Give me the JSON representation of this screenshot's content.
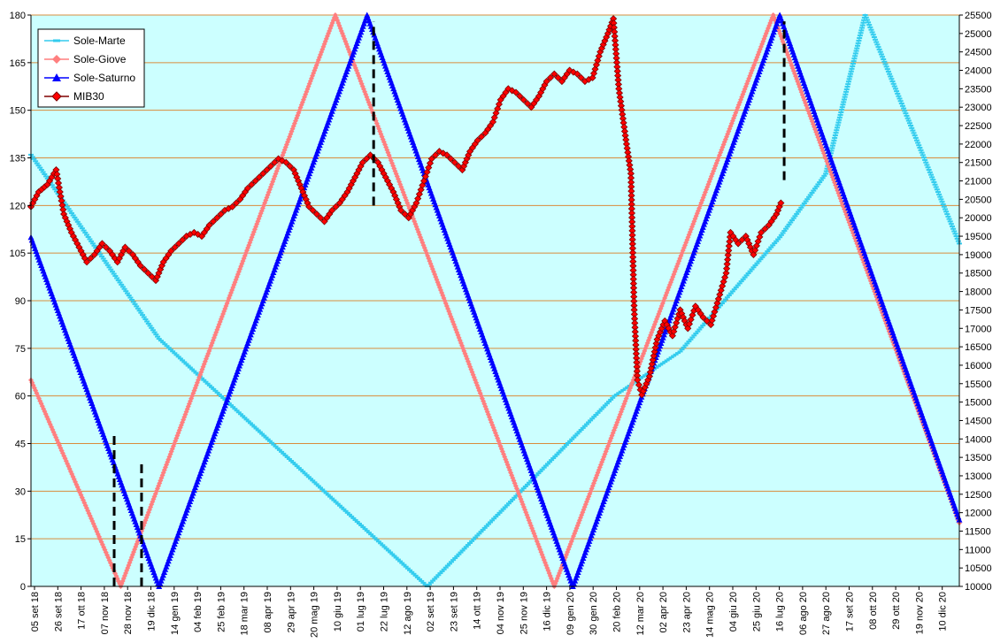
{
  "chart_data": {
    "type": "line",
    "title": "",
    "xlabel": "",
    "ylabel": "",
    "y_left": {
      "min": 0,
      "max": 180,
      "step": 15,
      "ticks": [
        "0",
        "15",
        "30",
        "45",
        "60",
        "75",
        "90",
        "105",
        "120",
        "135",
        "150",
        "165",
        "180"
      ]
    },
    "y_right": {
      "min": 10000,
      "max": 25500,
      "step": 500,
      "ticks": [
        "10000",
        "10500",
        "11000",
        "11500",
        "12000",
        "12500",
        "13000",
        "13500",
        "14000",
        "14500",
        "15000",
        "15500",
        "16000",
        "16500",
        "17000",
        "17500",
        "18000",
        "18500",
        "19000",
        "19500",
        "20000",
        "20500",
        "21000",
        "21500",
        "22000",
        "22500",
        "23000",
        "23500",
        "24000",
        "24500",
        "25000",
        "25500"
      ]
    },
    "x_range": [
      "2018-09-05",
      "2020-12-31"
    ],
    "x_tick_labels": [
      "05 set 18",
      "26 set 18",
      "17 ott 18",
      "07 nov 18",
      "28 nov 18",
      "19 dic 18",
      "14 gen 19",
      "04 feb 19",
      "25 feb 19",
      "18 mar 19",
      "08 apr 19",
      "29 apr 19",
      "20 mag 19",
      "10 giu 19",
      "01 lug 19",
      "22 lug 19",
      "12 ago 19",
      "02 set 19",
      "23 set 19",
      "14 ott 19",
      "04 nov 19",
      "25 nov 19",
      "16 dic 19",
      "09 gen 20",
      "30 gen 20",
      "20 feb 20",
      "12 mar 20",
      "02 apr 20",
      "23 apr 20",
      "14 mag 20",
      "04 giu 20",
      "25 giu 20",
      "16 lug 20",
      "06 ago 20",
      "27 ago 20",
      "17 set 20",
      "08 ott 20",
      "29 ott 20",
      "19 nov 20",
      "10 dic 20"
    ],
    "grid": {
      "horizontal": true,
      "vertical": false,
      "line_color": "#d98c3c"
    },
    "background": "#ccffff",
    "legend": {
      "position": "top-left",
      "entries": [
        {
          "name": "Sole-Marte",
          "color": "#33ccee",
          "marker": "dash"
        },
        {
          "name": "Sole-Giove",
          "color": "#ff7f7f",
          "marker": "diamond"
        },
        {
          "name": "Sole-Saturno",
          "color": "#0000ff",
          "marker": "triangle"
        },
        {
          "name": "MIB30",
          "color": "#800000",
          "marker_fill": "#ff0000",
          "marker": "diamond"
        }
      ]
    },
    "series": [
      {
        "name": "Sole-Marte",
        "axis": "left",
        "color": "#33ccee",
        "points": [
          [
            "2018-09-05",
            136
          ],
          [
            "2018-12-31",
            78
          ],
          [
            "2019-09-02",
            0
          ],
          [
            "2020-02-20",
            60
          ],
          [
            "2020-04-20",
            74
          ],
          [
            "2020-07-20",
            110
          ],
          [
            "2020-08-31",
            130
          ],
          [
            "2020-10-06",
            180
          ],
          [
            "2020-12-31",
            108
          ]
        ]
      },
      {
        "name": "Sole-Giove",
        "axis": "left",
        "color": "#ff7f7f",
        "points": [
          [
            "2018-09-05",
            65
          ],
          [
            "2018-11-26",
            0
          ],
          [
            "2019-06-10",
            180
          ],
          [
            "2019-12-27",
            0
          ],
          [
            "2020-07-14",
            180
          ],
          [
            "2020-12-31",
            20
          ]
        ]
      },
      {
        "name": "Sole-Saturno",
        "axis": "left",
        "color": "#0000ff",
        "points": [
          [
            "2018-09-05",
            110
          ],
          [
            "2018-12-31",
            0
          ],
          [
            "2019-07-09",
            180
          ],
          [
            "2020-01-13",
            0
          ],
          [
            "2020-07-20",
            180
          ],
          [
            "2020-12-31",
            21
          ]
        ]
      },
      {
        "name": "MIB30",
        "axis": "right",
        "color": "#800000",
        "marker_fill": "#ff0000",
        "points": [
          [
            "2018-09-05",
            20300
          ],
          [
            "2018-09-12",
            20700
          ],
          [
            "2018-09-20",
            20900
          ],
          [
            "2018-09-28",
            21300
          ],
          [
            "2018-10-05",
            20100
          ],
          [
            "2018-10-12",
            19600
          ],
          [
            "2018-10-19",
            19200
          ],
          [
            "2018-10-26",
            18800
          ],
          [
            "2018-11-02",
            19000
          ],
          [
            "2018-11-09",
            19300
          ],
          [
            "2018-11-16",
            19100
          ],
          [
            "2018-11-23",
            18800
          ],
          [
            "2018-11-30",
            19200
          ],
          [
            "2018-12-07",
            19000
          ],
          [
            "2018-12-14",
            18700
          ],
          [
            "2018-12-21",
            18500
          ],
          [
            "2018-12-28",
            18300
          ],
          [
            "2019-01-04",
            18800
          ],
          [
            "2019-01-11",
            19100
          ],
          [
            "2019-01-18",
            19300
          ],
          [
            "2019-01-25",
            19500
          ],
          [
            "2019-02-01",
            19600
          ],
          [
            "2019-02-08",
            19500
          ],
          [
            "2019-02-15",
            19800
          ],
          [
            "2019-02-22",
            20000
          ],
          [
            "2019-03-01",
            20200
          ],
          [
            "2019-03-08",
            20300
          ],
          [
            "2019-03-15",
            20500
          ],
          [
            "2019-03-22",
            20800
          ],
          [
            "2019-03-29",
            21000
          ],
          [
            "2019-04-05",
            21200
          ],
          [
            "2019-04-12",
            21400
          ],
          [
            "2019-04-19",
            21600
          ],
          [
            "2019-04-26",
            21500
          ],
          [
            "2019-05-03",
            21300
          ],
          [
            "2019-05-10",
            20800
          ],
          [
            "2019-05-17",
            20300
          ],
          [
            "2019-05-24",
            20100
          ],
          [
            "2019-05-31",
            19900
          ],
          [
            "2019-06-07",
            20200
          ],
          [
            "2019-06-14",
            20400
          ],
          [
            "2019-06-21",
            20700
          ],
          [
            "2019-06-28",
            21100
          ],
          [
            "2019-07-05",
            21500
          ],
          [
            "2019-07-12",
            21700
          ],
          [
            "2019-07-19",
            21500
          ],
          [
            "2019-07-26",
            21100
          ],
          [
            "2019-08-02",
            20700
          ],
          [
            "2019-08-09",
            20200
          ],
          [
            "2019-08-16",
            20000
          ],
          [
            "2019-08-23",
            20400
          ],
          [
            "2019-08-30",
            21000
          ],
          [
            "2019-09-06",
            21600
          ],
          [
            "2019-09-13",
            21800
          ],
          [
            "2019-09-20",
            21700
          ],
          [
            "2019-09-27",
            21500
          ],
          [
            "2019-10-04",
            21300
          ],
          [
            "2019-10-11",
            21800
          ],
          [
            "2019-10-18",
            22100
          ],
          [
            "2019-10-25",
            22300
          ],
          [
            "2019-11-01",
            22600
          ],
          [
            "2019-11-08",
            23200
          ],
          [
            "2019-11-15",
            23500
          ],
          [
            "2019-11-22",
            23400
          ],
          [
            "2019-11-29",
            23200
          ],
          [
            "2019-12-06",
            23000
          ],
          [
            "2019-12-13",
            23300
          ],
          [
            "2019-12-20",
            23700
          ],
          [
            "2019-12-27",
            23900
          ],
          [
            "2020-01-03",
            23700
          ],
          [
            "2020-01-10",
            24000
          ],
          [
            "2020-01-17",
            23900
          ],
          [
            "2020-01-24",
            23700
          ],
          [
            "2020-01-31",
            23800
          ],
          [
            "2020-02-07",
            24500
          ],
          [
            "2020-02-14",
            25000
          ],
          [
            "2020-02-19",
            25400
          ],
          [
            "2020-02-24",
            23500
          ],
          [
            "2020-03-02",
            22000
          ],
          [
            "2020-03-06",
            21200
          ],
          [
            "2020-03-09",
            17500
          ],
          [
            "2020-03-12",
            15600
          ],
          [
            "2020-03-16",
            15200
          ],
          [
            "2020-03-23",
            15700
          ],
          [
            "2020-03-30",
            16700
          ],
          [
            "2020-04-06",
            17200
          ],
          [
            "2020-04-13",
            16800
          ],
          [
            "2020-04-20",
            17500
          ],
          [
            "2020-04-27",
            17000
          ],
          [
            "2020-05-04",
            17600
          ],
          [
            "2020-05-11",
            17300
          ],
          [
            "2020-05-18",
            17100
          ],
          [
            "2020-05-25",
            17800
          ],
          [
            "2020-06-01",
            18500
          ],
          [
            "2020-06-05",
            19600
          ],
          [
            "2020-06-12",
            19300
          ],
          [
            "2020-06-19",
            19500
          ],
          [
            "2020-06-26",
            19000
          ],
          [
            "2020-07-03",
            19600
          ],
          [
            "2020-07-10",
            19800
          ],
          [
            "2020-07-17",
            20100
          ],
          [
            "2020-07-21",
            20400
          ]
        ]
      }
    ],
    "vertical_markers": [
      {
        "x": "2018-11-20",
        "y_from": 0,
        "y_to": 48
      },
      {
        "x": "2018-12-15",
        "y_from": 0,
        "y_to": 39
      },
      {
        "x": "2019-07-15",
        "y_from": 120,
        "y_to": 178
      },
      {
        "x": "2020-07-24",
        "y_from": 128,
        "y_to": 178
      }
    ]
  }
}
